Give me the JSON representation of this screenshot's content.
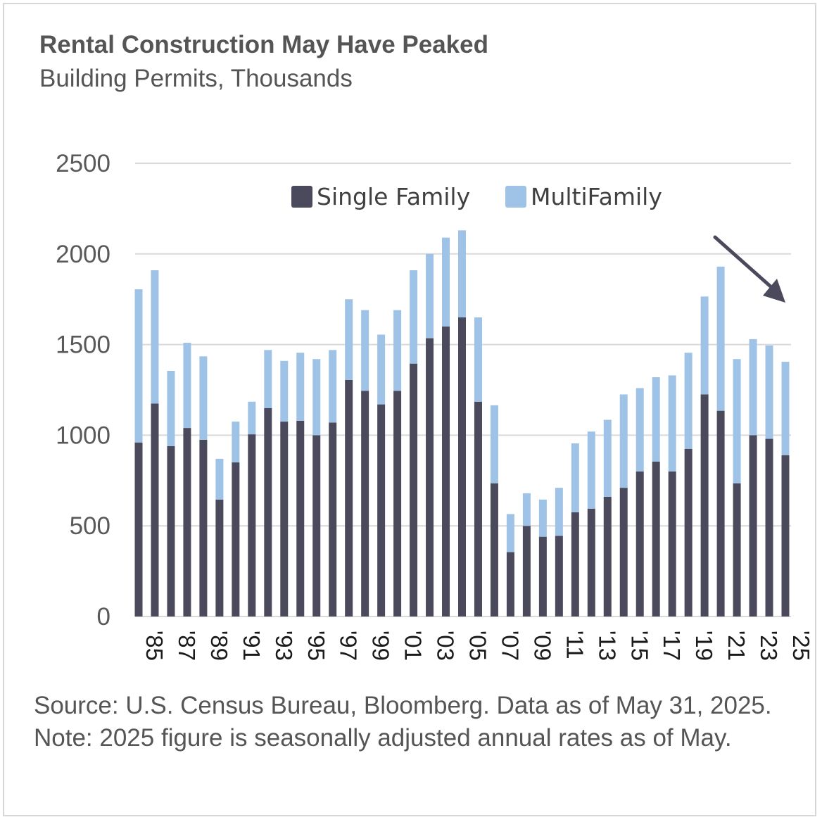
{
  "title": "Rental Construction May Have Peaked",
  "subtitle": "Building Permits, Thousands",
  "source": "Source: U.S. Census Bureau, Bloomberg. Data as of May 31, 2025. Note: 2025 figure is seasonally adjusted annual rates as of May.",
  "colors": {
    "single": "#4b4a5c",
    "multi": "#9fc3e7",
    "grid": "#d9d9d9",
    "arrow": "#4b4a5c"
  },
  "chart_data": {
    "type": "bar",
    "stacked": true,
    "ylim": [
      0,
      2500
    ],
    "yticks": [
      0,
      500,
      1000,
      1500,
      2000,
      2500
    ],
    "categories": [
      "1985",
      "1986",
      "1987",
      "1988",
      "1989",
      "1990",
      "1991",
      "1992",
      "1993",
      "1994",
      "1995",
      "1996",
      "1997",
      "1998",
      "1999",
      "2000",
      "2001",
      "2002",
      "2003",
      "2004",
      "2005",
      "2006",
      "2007",
      "2008",
      "2009",
      "2010",
      "2011",
      "2012",
      "2013",
      "2014",
      "2015",
      "2016",
      "2017",
      "2018",
      "2019",
      "2020",
      "2021",
      "2022",
      "2023",
      "2024",
      "2025"
    ],
    "tick_labels": [
      "'85",
      "'87",
      "'89",
      "'91",
      "'93",
      "'95",
      "'97",
      "'99",
      "'01",
      "'03",
      "'05",
      "'07",
      "'09",
      "'11",
      "'13",
      "'15",
      "'17",
      "'19",
      "'21",
      "'23",
      "'25"
    ],
    "series": [
      {
        "name": "Single Family",
        "values": [
          960,
          1175,
          940,
          1040,
          975,
          645,
          850,
          1005,
          1150,
          1075,
          1080,
          1000,
          1070,
          1305,
          1245,
          1170,
          1245,
          1395,
          1535,
          1600,
          1650,
          1185,
          735,
          355,
          500,
          440,
          445,
          575,
          595,
          660,
          710,
          800,
          855,
          800,
          925,
          1225,
          1135,
          735,
          1000,
          980,
          890
        ]
      },
      {
        "name": "MultiFamily",
        "values": [
          845,
          735,
          415,
          470,
          460,
          225,
          225,
          180,
          320,
          335,
          375,
          420,
          400,
          445,
          445,
          385,
          445,
          515,
          465,
          490,
          480,
          465,
          430,
          210,
          180,
          205,
          265,
          380,
          425,
          425,
          515,
          460,
          465,
          530,
          530,
          540,
          795,
          685,
          530,
          515,
          515
        ]
      }
    ],
    "legend": [
      "Single Family",
      "MultiFamily"
    ],
    "legend_position": "top",
    "annotation": "downward arrow near recent years",
    "grid": true
  }
}
